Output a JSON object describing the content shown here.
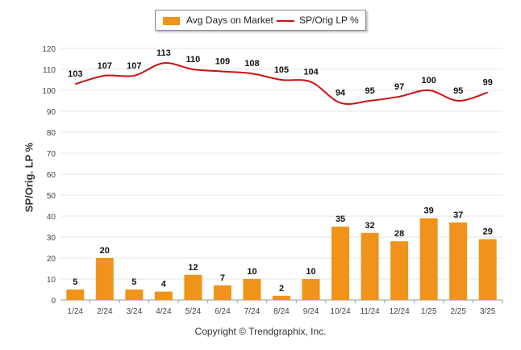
{
  "chart_data": {
    "type": "bar+line",
    "categories": [
      "1/24",
      "2/24",
      "3/24",
      "4/24",
      "5/24",
      "6/24",
      "7/24",
      "8/24",
      "9/24",
      "10/24",
      "11/24",
      "12/24",
      "1/25",
      "2/25",
      "3/25"
    ],
    "series": [
      {
        "name": "Avg Days on Market",
        "type": "bar",
        "color": "#f0931a",
        "values": [
          5,
          20,
          5,
          4,
          12,
          7,
          10,
          2,
          10,
          35,
          32,
          28,
          39,
          37,
          29
        ]
      },
      {
        "name": "SP/Orig LP %",
        "type": "line",
        "color": "#cc1111",
        "values": [
          103,
          107,
          107,
          113,
          110,
          109,
          108,
          105,
          104,
          94,
          95,
          97,
          100,
          95,
          99
        ]
      }
    ],
    "ylabel": "SP/Orig. LP %",
    "ylim": [
      0,
      120
    ],
    "yticks": [
      0,
      10,
      20,
      30,
      40,
      50,
      60,
      70,
      80,
      90,
      100,
      110,
      120
    ],
    "grid": true,
    "legend_position": "top-center"
  },
  "footer": {
    "copyright": "Copyright © Trendgraphix, Inc."
  }
}
